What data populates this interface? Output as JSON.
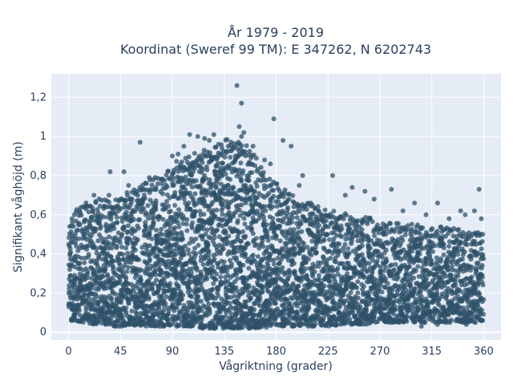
{
  "chart_data": {
    "type": "scatter",
    "title_line1": "År 1979 - 2019",
    "title_line2": "Koordinat (Sweref 99 TM): E 347262, N 6202743",
    "xlabel": "Vågriktning (grader)",
    "ylabel": "Signifikant våghöjd (m)",
    "xlim": [
      -15,
      375
    ],
    "ylim": [
      -0.04,
      1.32
    ],
    "xticks": [
      0,
      45,
      90,
      135,
      180,
      225,
      270,
      315,
      360
    ],
    "yticks": [
      0,
      0.2,
      0.4,
      0.6,
      0.8,
      1,
      1.2
    ],
    "ytick_labels": [
      "0",
      "0,2",
      "0,4",
      "0,6",
      "0,8",
      "1",
      "1,2"
    ],
    "grid": true,
    "plot_bgcolor": "#e5ecf6",
    "marker_color": "#2f5269",
    "marker_opacity": 0.75,
    "series": [
      {
        "x": [
          0,
          5,
          10,
          15,
          20,
          25,
          30,
          35,
          40,
          45,
          50,
          55,
          60,
          65,
          70,
          75,
          80,
          85,
          90,
          95,
          100,
          105,
          110,
          115,
          120,
          125,
          130,
          135,
          140,
          145,
          150,
          155,
          160,
          165,
          170,
          175,
          180,
          185,
          190,
          195,
          200,
          205,
          210,
          215,
          220,
          225,
          230,
          235,
          240,
          245,
          250,
          255,
          260,
          265,
          270,
          275,
          280,
          285,
          290,
          295,
          300,
          305,
          310,
          315,
          320,
          325,
          330,
          335,
          340,
          345,
          350,
          355,
          360
        ],
        "y_min": [
          0.06,
          0.06,
          0.05,
          0.05,
          0.04,
          0.04,
          0.04,
          0.04,
          0.03,
          0.03,
          0.03,
          0.03,
          0.03,
          0.03,
          0.03,
          0.03,
          0.03,
          0.03,
          0.03,
          0.03,
          0.03,
          0.03,
          0.03,
          0.02,
          0.02,
          0.02,
          0.02,
          0.02,
          0.02,
          0.02,
          0.02,
          0.02,
          0.02,
          0.02,
          0.02,
          0.02,
          0.03,
          0.03,
          0.03,
          0.03,
          0.03,
          0.03,
          0.03,
          0.03,
          0.03,
          0.03,
          0.03,
          0.04,
          0.04,
          0.04,
          0.04,
          0.04,
          0.04,
          0.05,
          0.05,
          0.05,
          0.05,
          0.05,
          0.05,
          0.05,
          0.05,
          0.05,
          0.05,
          0.05,
          0.05,
          0.05,
          0.05,
          0.05,
          0.05,
          0.05,
          0.05,
          0.05,
          0.06
        ],
        "y_max": [
          0.5,
          0.55,
          0.58,
          0.6,
          0.61,
          0.62,
          0.63,
          0.62,
          0.63,
          0.65,
          0.66,
          0.67,
          0.68,
          0.7,
          0.72,
          0.73,
          0.74,
          0.76,
          0.79,
          0.82,
          0.84,
          0.85,
          0.86,
          0.87,
          0.88,
          0.89,
          0.9,
          0.92,
          0.93,
          0.94,
          0.92,
          0.89,
          0.85,
          0.8,
          0.76,
          0.72,
          0.7,
          0.68,
          0.66,
          0.64,
          0.62,
          0.61,
          0.6,
          0.59,
          0.58,
          0.57,
          0.56,
          0.55,
          0.55,
          0.54,
          0.54,
          0.53,
          0.53,
          0.52,
          0.52,
          0.51,
          0.51,
          0.5,
          0.5,
          0.5,
          0.49,
          0.49,
          0.48,
          0.48,
          0.48,
          0.48,
          0.47,
          0.47,
          0.47,
          0.46,
          0.46,
          0.46,
          0.46
        ],
        "outliers": [
          [
            146,
            1.26
          ],
          [
            150,
            1.17
          ],
          [
            178,
            1.09
          ],
          [
            148,
            1.05
          ],
          [
            126,
            1.01
          ],
          [
            152,
            1.02
          ],
          [
            122,
            0.98
          ],
          [
            193,
            0.95
          ],
          [
            186,
            0.98
          ],
          [
            62,
            0.97
          ],
          [
            100,
            0.95
          ],
          [
            130,
            0.96
          ],
          [
            150,
            1.0
          ],
          [
            48,
            0.82
          ],
          [
            36,
            0.82
          ],
          [
            229,
            0.8
          ],
          [
            52,
            0.75
          ],
          [
            22,
            0.7
          ],
          [
            35,
            0.7
          ],
          [
            70,
            0.79
          ],
          [
            280,
            0.73
          ],
          [
            257,
            0.72
          ],
          [
            356,
            0.73
          ],
          [
            203,
            0.8
          ],
          [
            246,
            0.74
          ],
          [
            210,
            0.66
          ],
          [
            200,
            0.75
          ],
          [
            320,
            0.66
          ],
          [
            300,
            0.66
          ],
          [
            352,
            0.62
          ],
          [
            340,
            0.62
          ],
          [
            344,
            0.6
          ],
          [
            15,
            0.63
          ],
          [
            10,
            0.61
          ],
          [
            5,
            0.6
          ],
          [
            90,
            0.9
          ],
          [
            95,
            0.91
          ],
          [
            118,
            0.99
          ],
          [
            112,
            1.0
          ],
          [
            105,
            1.01
          ],
          [
            160,
            0.95
          ],
          [
            170,
            0.88
          ],
          [
            175,
            0.86
          ],
          [
            240,
            0.7
          ],
          [
            265,
            0.68
          ],
          [
            290,
            0.62
          ],
          [
            310,
            0.6
          ],
          [
            330,
            0.58
          ],
          [
            358,
            0.58
          ],
          [
            1,
            0.54
          ],
          [
            342,
            0.05
          ],
          [
            345,
            0.04
          ],
          [
            24,
            0.06
          ],
          [
            280,
            0.05
          ],
          [
            306,
            0.03
          ],
          [
            320,
            0.04
          ]
        ]
      }
    ]
  }
}
